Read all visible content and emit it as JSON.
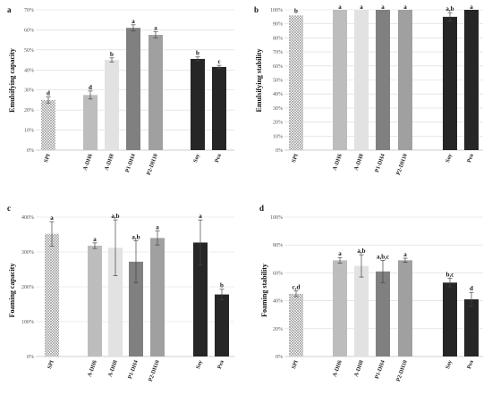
{
  "colors": {
    "SPI": "#9a9a9a",
    "A-DH6": "#bdbdbd",
    "A-DH8": "#e2e2e2",
    "P1-DH4": "#808080",
    "P2-DH10": "#a0a0a0",
    "Soy": "#262626",
    "Pea": "#262626"
  },
  "chart_data": [
    {
      "panel": "a",
      "type": "bar",
      "ylabel": "Emulsifying capacity",
      "categories": [
        "SPI",
        "A-DH6",
        "A-DH8",
        "P1-DH4",
        "P2-DH10",
        "Soy",
        "Pea"
      ],
      "values": [
        25,
        27.5,
        45,
        61,
        57.5,
        45.5,
        41.5
      ],
      "errors": [
        1.5,
        2,
        1,
        1.5,
        1.5,
        1,
        0.8
      ],
      "letters": [
        "d",
        "d",
        "b",
        "a",
        "a",
        "b",
        "c"
      ],
      "ylim": [
        0,
        70
      ],
      "yticks": [
        "0%",
        "10%",
        "20%",
        "30%",
        "40%",
        "50%",
        "60%",
        "70%"
      ],
      "grid": true
    },
    {
      "panel": "b",
      "type": "bar",
      "ylabel": "Emulsifying stability",
      "categories": [
        "SPI",
        "A-DH6",
        "A-DH8",
        "P1-DH4",
        "P2-DH10",
        "Soy",
        "Pea"
      ],
      "values": [
        96,
        100,
        100,
        100,
        100,
        95,
        100
      ],
      "errors": [
        0,
        0,
        0,
        0,
        0,
        3,
        0
      ],
      "letters": [
        "b",
        "a",
        "a",
        "a",
        "a",
        "a,b",
        "a"
      ],
      "ylim": [
        0,
        100
      ],
      "yticks": [
        "0%",
        "10%",
        "20%",
        "30%",
        "40%",
        "50%",
        "60%",
        "70%",
        "80%",
        "90%",
        "100%"
      ],
      "grid": true
    },
    {
      "panel": "c",
      "type": "bar",
      "ylabel": "Foaming capacity",
      "categories": [
        "SPI",
        "A-DH6",
        "A-DH8",
        "P1-DH4",
        "P2-DH10",
        "Soy",
        "Pea"
      ],
      "values": [
        352,
        318,
        312,
        272,
        340,
        327,
        178
      ],
      "errors": [
        35,
        8,
        80,
        60,
        20,
        65,
        15
      ],
      "letters": [
        "a",
        "a",
        "a,b",
        "a,b",
        "a",
        "a",
        "b"
      ],
      "ylim": [
        0,
        400
      ],
      "yticks": [
        "0%",
        "100%",
        "200%",
        "300%",
        "400%"
      ],
      "grid": true
    },
    {
      "panel": "d",
      "type": "bar",
      "ylabel": "Foaming stability",
      "categories": [
        "SPI",
        "A-DH6",
        "A-DH8",
        "P1-DH4",
        "P2-DH10",
        "Soy",
        "Pea"
      ],
      "values": [
        45,
        69,
        65,
        61,
        69,
        53,
        41
      ],
      "errors": [
        2,
        2,
        8,
        8,
        1.5,
        3,
        5
      ],
      "letters": [
        "c,d",
        "a",
        "a,b",
        "a,b,c",
        "a",
        "b,c",
        "d"
      ],
      "ylim": [
        0,
        100
      ],
      "yticks": [
        "0%",
        "20%",
        "40%",
        "60%",
        "80%",
        "100%"
      ],
      "grid": true
    }
  ]
}
